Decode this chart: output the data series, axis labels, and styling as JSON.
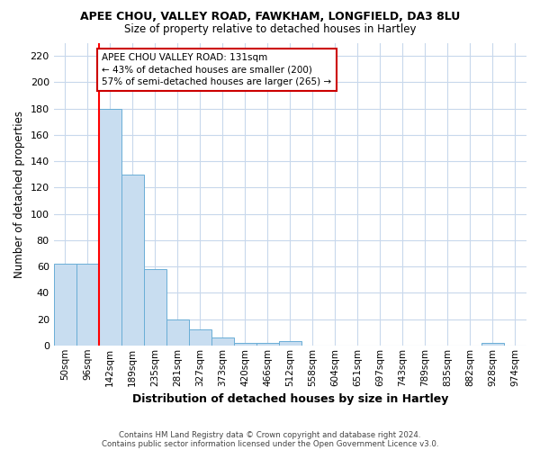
{
  "title1": "APEE CHOU, VALLEY ROAD, FAWKHAM, LONGFIELD, DA3 8LU",
  "title2": "Size of property relative to detached houses in Hartley",
  "xlabel": "Distribution of detached houses by size in Hartley",
  "ylabel": "Number of detached properties",
  "categories": [
    "50sqm",
    "96sqm",
    "142sqm",
    "189sqm",
    "235sqm",
    "281sqm",
    "327sqm",
    "373sqm",
    "420sqm",
    "466sqm",
    "512sqm",
    "558sqm",
    "604sqm",
    "651sqm",
    "697sqm",
    "743sqm",
    "789sqm",
    "835sqm",
    "882sqm",
    "928sqm",
    "974sqm"
  ],
  "values": [
    62,
    62,
    180,
    130,
    58,
    20,
    12,
    6,
    2,
    2,
    3,
    0,
    0,
    0,
    0,
    0,
    0,
    0,
    0,
    2,
    0
  ],
  "bar_color": "#c8ddf0",
  "bar_edge_color": "#6aaed6",
  "red_line_index": 2,
  "ylim": [
    0,
    230
  ],
  "yticks": [
    0,
    20,
    40,
    60,
    80,
    100,
    120,
    140,
    160,
    180,
    200,
    220
  ],
  "annotation_text": "APEE CHOU VALLEY ROAD: 131sqm\n← 43% of detached houses are smaller (200)\n57% of semi-detached houses are larger (265) →",
  "annotation_box_color": "#ffffff",
  "annotation_box_edge_color": "#cc0000",
  "footer1": "Contains HM Land Registry data © Crown copyright and database right 2024.",
  "footer2": "Contains public sector information licensed under the Open Government Licence v3.0.",
  "background_color": "#ffffff",
  "grid_color": "#c8d8ec"
}
